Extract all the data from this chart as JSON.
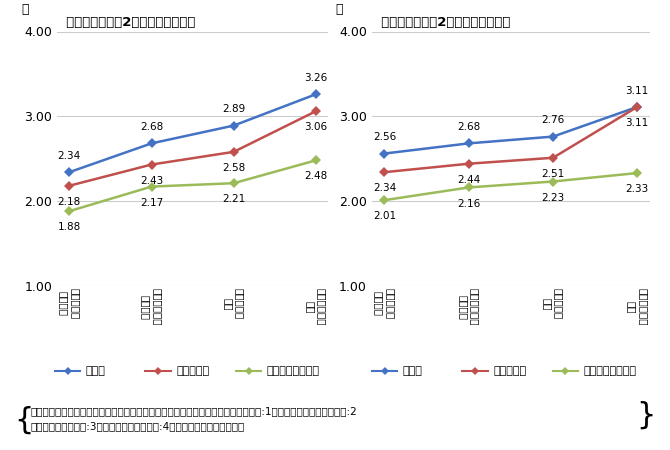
{
  "left_title": "平日寝る時刻が2時間以上変動する",
  "right_title": "平日起床時刻が2時間以上変動する",
  "ylabel": "点",
  "x_labels": [
    "全く当ては\nまらない",
    "あまり当ては\nまらない",
    "少し当ては\nまる",
    "とても当ては\nまる"
  ],
  "x_labels_vertical": [
    "全く当ては\nまらない",
    "あまり当ては\nまらない",
    "少し当ては\nまる",
    "とても当ては\nまる"
  ],
  "ylim": [
    1.0,
    4.0
  ],
  "yticks": [
    1.0,
    2.0,
    3.0,
    4.0
  ],
  "left_series": {
    "疲労感": [
      2.34,
      2.68,
      2.89,
      3.26
    ],
    "イライラ感": [
      2.18,
      2.43,
      2.58,
      3.06
    ],
    "風邪の引きやすさ": [
      1.88,
      2.17,
      2.21,
      2.48
    ]
  },
  "right_series": {
    "疲労感": [
      2.56,
      2.68,
      2.76,
      3.11
    ],
    "イライラ感": [
      2.34,
      2.44,
      2.51,
      3.11
    ],
    "風邪の引きやすさ": [
      2.01,
      2.16,
      2.23,
      2.33
    ]
  },
  "colors": {
    "疲労感": "#4472C4",
    "イライラ感": "#C0504D",
    "風邪の引きやすさ": "#9BBB59"
  },
  "legend_labels": [
    "疲労感",
    "イライラ感",
    "風邪の引きやすさ"
  ],
  "footnote_line1": "疲労感、イライラ感、風邪の引きやすさの項目、それぞれに、全く当てはまらない:1点、あまり当てはまらない:2",
  "footnote_line2": "点、少し当てはまる:3点、とても当てはまる:4点　と加点し平均値を算出",
  "grid_color": "#CCCCCC",
  "bg_color": "#FFFFFF"
}
